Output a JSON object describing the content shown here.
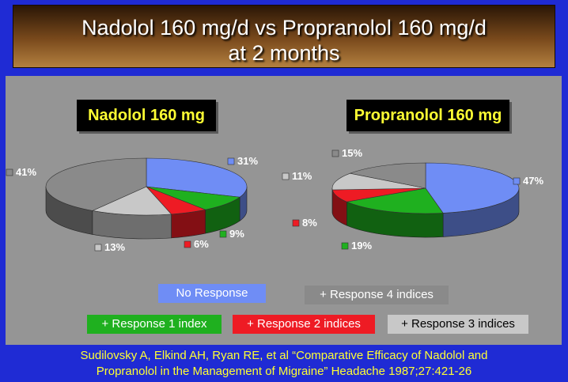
{
  "title": {
    "line1": "Nadolol 160 mg/d vs Propranolol 160 mg/d",
    "line2": "at 2 months"
  },
  "chart_data": [
    {
      "type": "pie",
      "title": "Nadolol 160 mg",
      "slices": [
        {
          "category": "No Response",
          "value": 31,
          "label": "31%"
        },
        {
          "category": "+ Response 1 index",
          "value": 9,
          "label": "9%"
        },
        {
          "category": "+ Response 2 indices",
          "value": 6,
          "label": "6%"
        },
        {
          "category": "+ Response 3 indices",
          "value": 13,
          "label": "13%"
        },
        {
          "category": "+ Response 4 indices",
          "value": 41,
          "label": "41%"
        }
      ]
    },
    {
      "type": "pie",
      "title": "Propranolol 160 mg",
      "slices": [
        {
          "category": "No Response",
          "value": 47,
          "label": "47%"
        },
        {
          "category": "+ Response 1 index",
          "value": 19,
          "label": "19%"
        },
        {
          "category": "+ Response 2 indices",
          "value": 8,
          "label": "8%"
        },
        {
          "category": "+ Response 3 indices",
          "value": 11,
          "label": "11%"
        },
        {
          "category": "+ Response 4 indices",
          "value": 15,
          "label": "15%"
        }
      ]
    }
  ],
  "legend": [
    {
      "label": "No Response",
      "color": "#6f8df5"
    },
    {
      "label": "+ Response 4 indices",
      "color": "#8a8a8a"
    },
    {
      "label": "+ Response 1 index",
      "color": "#1fb01f"
    },
    {
      "label": "+ Response 2 indices",
      "color": "#ee1b24"
    },
    {
      "label": "+ Response 3 indices",
      "color": "#c8c8c8"
    }
  ],
  "citation": {
    "line1": "Sudilovsky  A, Elkind  AH, Ryan  RE, et al “Comparative Efficacy of Nadolol and",
    "line2": "Propranolol in the Management of Migraine” Headache  1987;27:421-26"
  }
}
